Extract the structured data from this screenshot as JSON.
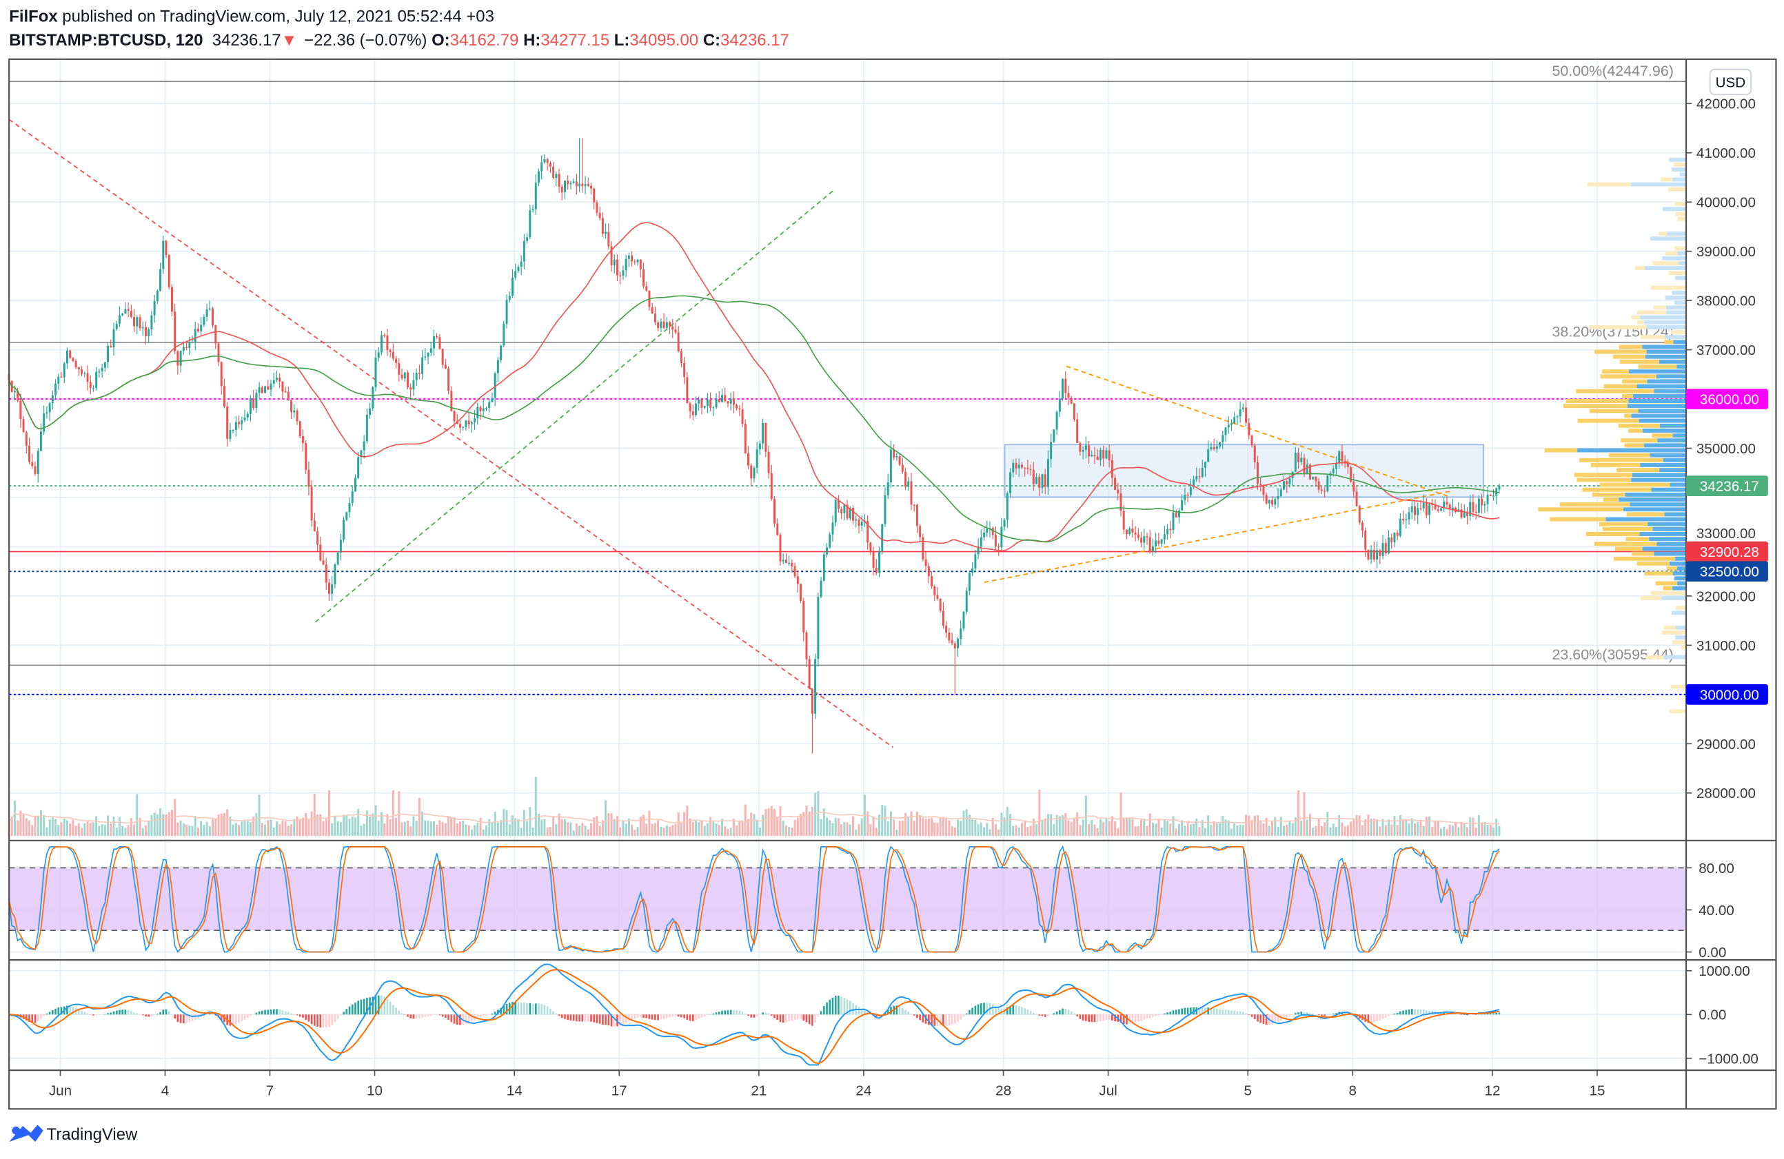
{
  "header": {
    "author": "FilFox",
    "published": " published on TradingView.com, July 12, 2021 05:52:44 +03",
    "symbol": "BITSTAMP:BTCUSD, 120",
    "last": "34236.17",
    "arrow": "▼",
    "change": "−22.36 (−0.07%)",
    "o_label": "O:",
    "o": "34162.79",
    "h_label": "H:",
    "h": "34277.15",
    "l_label": "L:",
    "l": "34095.00",
    "c_label": "C:",
    "c": "34236.17"
  },
  "currency_button": "USD",
  "footer": {
    "brand": "TradingView"
  },
  "colors": {
    "up": "#26a69a",
    "down": "#ef5350",
    "ma_fast": "#ef5350",
    "ma_slow": "#43a047",
    "stoch_k": "#2196f3",
    "stoch_d": "#ff6d00",
    "magenta": "#ff00ff",
    "navy": "#0d47a1",
    "blue": "#0000ff",
    "last_price": "#4caf7d"
  },
  "chart_data": {
    "type": "candlestick",
    "title": "BITSTAMP:BTCUSD, 120",
    "x_unit": "days since Jun 1 2021",
    "x_ticks": [
      {
        "day": 0,
        "label": "Jun"
      },
      {
        "day": 3,
        "label": "4"
      },
      {
        "day": 6,
        "label": "7"
      },
      {
        "day": 9,
        "label": "10"
      },
      {
        "day": 13,
        "label": "14"
      },
      {
        "day": 16,
        "label": "17"
      },
      {
        "day": 20,
        "label": "21"
      },
      {
        "day": 23,
        "label": "24"
      },
      {
        "day": 27,
        "label": "28"
      },
      {
        "day": 30,
        "label": "Jul"
      },
      {
        "day": 34,
        "label": "5"
      },
      {
        "day": 37,
        "label": "8"
      },
      {
        "day": 41,
        "label": "12"
      },
      {
        "day": 44,
        "label": "15"
      }
    ],
    "x_range": [
      -1.47,
      46.6
    ],
    "y_range": [
      27200,
      43100
    ],
    "y_ticks": [
      "42000.00",
      "41000.00",
      "40000.00",
      "39000.00",
      "38000.00",
      "37000.00",
      "35000.00",
      "33000.00",
      "32000.00",
      "31000.00",
      "29000.00",
      "28000.00"
    ],
    "y_tick_values": [
      42000,
      41000,
      40000,
      39000,
      38000,
      37000,
      35000,
      33000,
      32000,
      31000,
      29000,
      28000
    ],
    "price_path": [
      [
        -1.47,
        36500
      ],
      [
        -1.07,
        35500
      ],
      [
        -0.75,
        34300
      ],
      [
        -0.42,
        35800
      ],
      [
        0.23,
        36900
      ],
      [
        0.88,
        36200
      ],
      [
        1.86,
        37900
      ],
      [
        2.51,
        37200
      ],
      [
        3.0,
        39300
      ],
      [
        3.32,
        36700
      ],
      [
        4.3,
        37800
      ],
      [
        4.79,
        35300
      ],
      [
        5.44,
        35900
      ],
      [
        6.25,
        36500
      ],
      [
        6.9,
        35300
      ],
      [
        7.23,
        33500
      ],
      [
        7.72,
        32000
      ],
      [
        8.05,
        33200
      ],
      [
        8.7,
        35200
      ],
      [
        9.19,
        37400
      ],
      [
        10.0,
        36200
      ],
      [
        10.8,
        37300
      ],
      [
        11.3,
        35500
      ],
      [
        12.3,
        35800
      ],
      [
        12.8,
        38000
      ],
      [
        13.3,
        39200
      ],
      [
        13.77,
        40800
      ],
      [
        14.4,
        40300
      ],
      [
        15.2,
        40200
      ],
      [
        15.9,
        38600
      ],
      [
        16.5,
        38900
      ],
      [
        17.0,
        37600
      ],
      [
        17.6,
        37500
      ],
      [
        18.0,
        35800
      ],
      [
        18.8,
        36000
      ],
      [
        19.45,
        35800
      ],
      [
        19.8,
        34200
      ],
      [
        20.1,
        35500
      ],
      [
        20.6,
        32700
      ],
      [
        21.1,
        32400
      ],
      [
        21.55,
        29500
      ],
      [
        21.7,
        32200
      ],
      [
        22.2,
        33800
      ],
      [
        23.0,
        33500
      ],
      [
        23.35,
        32500
      ],
      [
        23.8,
        35000
      ],
      [
        24.3,
        34200
      ],
      [
        24.8,
        32500
      ],
      [
        25.3,
        31500
      ],
      [
        25.6,
        30800
      ],
      [
        26.1,
        32700
      ],
      [
        26.6,
        33400
      ],
      [
        26.9,
        33000
      ],
      [
        27.2,
        34600
      ],
      [
        28.2,
        34300
      ],
      [
        28.7,
        36500
      ],
      [
        29.2,
        35000
      ],
      [
        30.0,
        34800
      ],
      [
        30.5,
        33300
      ],
      [
        31.3,
        33000
      ],
      [
        32.1,
        33800
      ],
      [
        32.8,
        34800
      ],
      [
        33.4,
        35500
      ],
      [
        33.9,
        35800
      ],
      [
        34.3,
        34200
      ],
      [
        34.8,
        33800
      ],
      [
        35.4,
        34900
      ],
      [
        36.1,
        34000
      ],
      [
        36.6,
        34900
      ],
      [
        37.0,
        34300
      ],
      [
        37.4,
        32800
      ],
      [
        38.0,
        33000
      ],
      [
        38.6,
        33800
      ],
      [
        39.3,
        33800
      ],
      [
        40.2,
        33700
      ],
      [
        40.9,
        34000
      ],
      [
        41.2,
        34236.17
      ]
    ],
    "last_close": 34236.17,
    "levels": [
      {
        "price": 36000,
        "label": "36000.00",
        "color": "#ff00ff",
        "style": "dotted"
      },
      {
        "price": 34236.17,
        "label": "34236.17",
        "color": "#4caf7d",
        "style": "dotted"
      },
      {
        "price": 32900.28,
        "label": "32900.28",
        "color": "#f23645",
        "style": "solid"
      },
      {
        "price": 32500,
        "label": "32500.00",
        "color": "#0d47a1",
        "style": "dotted"
      },
      {
        "price": 30000,
        "label": "30000.00",
        "color": "#0000ff",
        "style": "dotted"
      }
    ],
    "fib_levels": [
      {
        "price": 42447.96,
        "label": "50.00%(42447.96)"
      },
      {
        "price": 37150.24,
        "label": "38.20%(37150.24)"
      },
      {
        "price": 30595.44,
        "label": "23.60%(30595.44)"
      }
    ],
    "trendlines": [
      {
        "name": "red-downtrend",
        "color": "#ef5350",
        "from": [
          -1.47,
          41677
        ],
        "to": [
          23.84,
          28928
        ]
      },
      {
        "name": "green-uptrend",
        "color": "#4caf50",
        "from": [
          7.3,
          31469
        ],
        "to": [
          22.15,
          40245
        ]
      },
      {
        "name": "orange-upper",
        "color": "#ff9800",
        "from": [
          28.8,
          36665
        ],
        "to": [
          39.8,
          34009
        ]
      },
      {
        "name": "orange-lower",
        "color": "#ff9800",
        "from": [
          26.45,
          32277
        ],
        "to": [
          39.8,
          34125
        ]
      }
    ],
    "range_box": {
      "from": [
        27.04,
        35072
      ],
      "to": [
        40.75,
        34009
      ]
    },
    "value_area": [
      32100,
      37150
    ],
    "stoch_rsi": {
      "ticks": [
        "80.00",
        "40.00",
        "0.00"
      ],
      "tick_values": [
        80,
        40,
        0
      ],
      "bands": [
        20,
        80
      ]
    },
    "macd": {
      "ticks": [
        "1000.00",
        "0.00",
        "−1000.00"
      ],
      "tick_values": [
        1000,
        0,
        -1000
      ]
    }
  }
}
